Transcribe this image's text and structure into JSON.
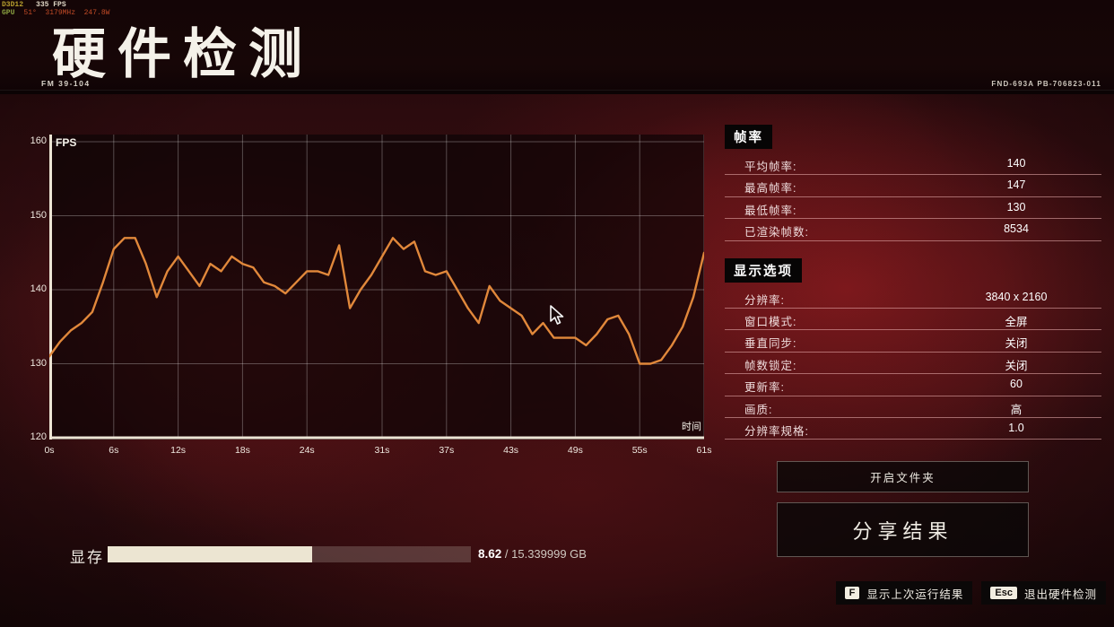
{
  "overlay": {
    "api": "D3D12",
    "fps": "335 FPS",
    "gpu_label": "GPU",
    "gpu_stats": "51°  3179MHz  247.8W"
  },
  "header": {
    "title": "硬件检测",
    "doc_code": "FM 39-104",
    "build_code": "FND-693A PB-706823-011"
  },
  "chart_data": {
    "type": "line",
    "title": "",
    "ylabel": "FPS",
    "xlabel": "时间",
    "ylim": [
      120,
      160
    ],
    "xlim_seconds": [
      0,
      61
    ],
    "yticks": [
      160,
      150,
      140,
      130,
      120
    ],
    "xtick_pos": [
      0,
      6,
      12,
      18,
      24,
      31,
      37,
      43,
      49,
      55,
      61
    ],
    "xtick_labels": [
      "0s",
      "6s",
      "12s",
      "18s",
      "24s",
      "31s",
      "37s",
      "43s",
      "49s",
      "55s",
      "61s"
    ],
    "grid": true,
    "line_color": "#e1883b",
    "values": [
      131,
      133,
      134.5,
      135.5,
      137,
      141,
      145.5,
      147,
      147,
      143.5,
      139,
      142.5,
      144.5,
      142.5,
      140.5,
      143.5,
      142.5,
      144.5,
      143.5,
      143,
      141,
      140.5,
      139.5,
      141,
      142.5,
      142.5,
      142,
      146,
      137.5,
      140,
      142,
      144.5,
      147,
      145.5,
      146.5,
      142.5,
      142,
      142.5,
      140,
      137.5,
      135.5,
      140.5,
      138.5,
      137.5,
      136.5,
      134,
      135.5,
      133.5,
      133.5,
      133.5,
      132.5,
      134,
      136,
      136.5,
      134,
      130,
      130,
      130.5,
      132.5,
      135,
      139,
      145
    ]
  },
  "stats": {
    "framerate": {
      "title": "帧率",
      "rows": [
        {
          "label": "平均帧率:",
          "value": "140"
        },
        {
          "label": "最高帧率:",
          "value": "147"
        },
        {
          "label": "最低帧率:",
          "value": "130"
        },
        {
          "label": "已渲染帧数:",
          "value": "8534"
        }
      ]
    },
    "display": {
      "title": "显示选项",
      "rows": [
        {
          "label": "分辨率:",
          "value": "3840 x 2160"
        },
        {
          "label": "窗口模式:",
          "value": "全屏"
        },
        {
          "label": "垂直同步:",
          "value": "关闭"
        },
        {
          "label": "帧数锁定:",
          "value": "关闭"
        },
        {
          "label": "更新率:",
          "value": "60"
        },
        {
          "label": "画质:",
          "value": "高"
        },
        {
          "label": "分辨率规格:",
          "value": "1.0"
        }
      ]
    }
  },
  "buttons": {
    "open_folder": "开启文件夹",
    "share": "分享结果"
  },
  "vram": {
    "label": "显存",
    "used": "8.62",
    "rest": " / 15.339999 GB",
    "fill_pct": 56.2
  },
  "hints": [
    {
      "key": "F",
      "label": "显示上次运行结果"
    },
    {
      "key": "Esc",
      "label": "退出硬件检测"
    }
  ],
  "colors": {
    "accent_line": "#e1883b",
    "axis": "#ece4d4",
    "bar_fill": "#ece5d2",
    "background_red": "#3a0f12"
  }
}
